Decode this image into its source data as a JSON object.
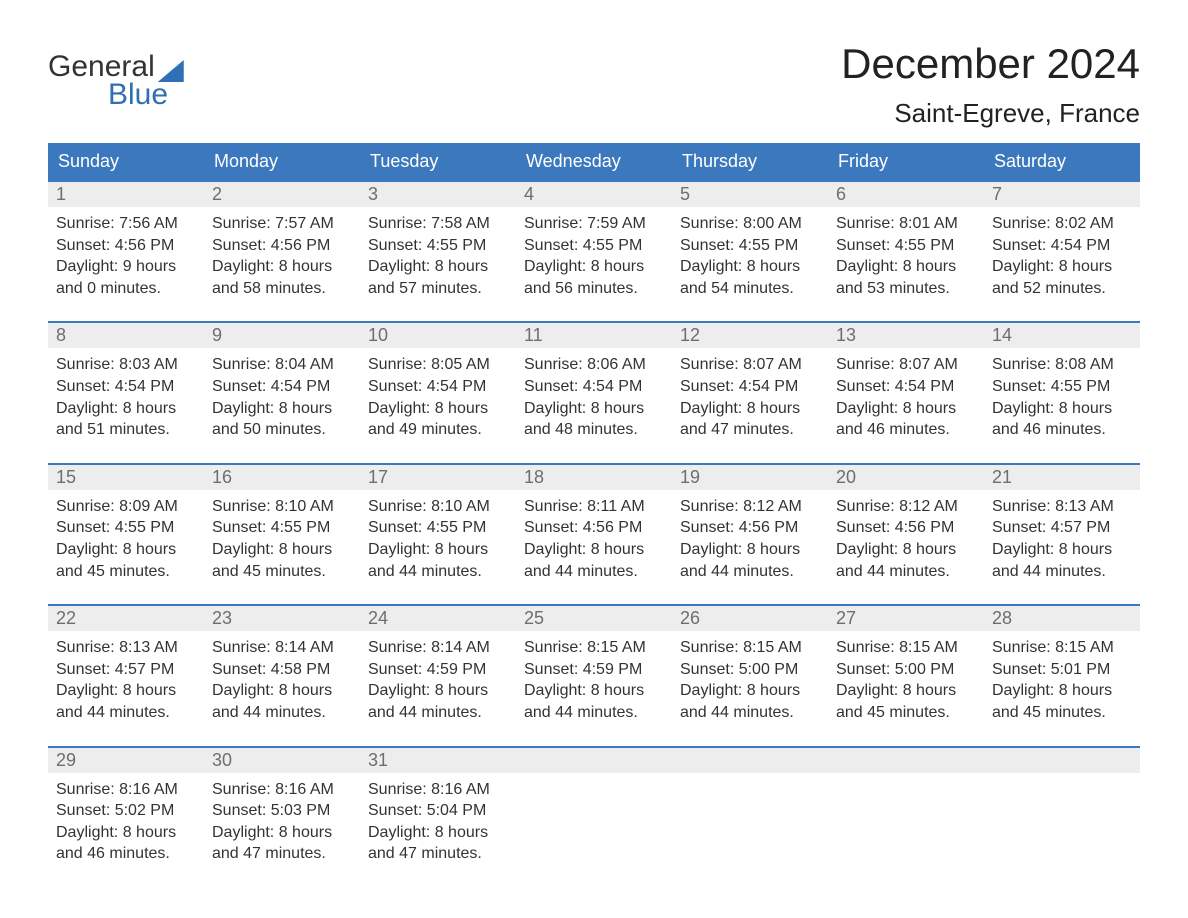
{
  "brand": {
    "line1": "General",
    "line2": "Blue"
  },
  "title": "December 2024",
  "location": "Saint-Egreve, France",
  "colors": {
    "header_bg": "#3b78be",
    "header_text": "#ffffff",
    "week_border": "#3b78be",
    "daynum_bg": "#ededed",
    "daynum_text": "#6e6e6e",
    "body_text": "#333333",
    "brand_blue": "#2f6fb3",
    "page_bg": "#ffffff"
  },
  "calendar": {
    "day_headers": [
      "Sunday",
      "Monday",
      "Tuesday",
      "Wednesday",
      "Thursday",
      "Friday",
      "Saturday"
    ],
    "weeks": [
      [
        {
          "n": "1",
          "sunrise": "Sunrise: 7:56 AM",
          "sunset": "Sunset: 4:56 PM",
          "dl1": "Daylight: 9 hours",
          "dl2": "and 0 minutes."
        },
        {
          "n": "2",
          "sunrise": "Sunrise: 7:57 AM",
          "sunset": "Sunset: 4:56 PM",
          "dl1": "Daylight: 8 hours",
          "dl2": "and 58 minutes."
        },
        {
          "n": "3",
          "sunrise": "Sunrise: 7:58 AM",
          "sunset": "Sunset: 4:55 PM",
          "dl1": "Daylight: 8 hours",
          "dl2": "and 57 minutes."
        },
        {
          "n": "4",
          "sunrise": "Sunrise: 7:59 AM",
          "sunset": "Sunset: 4:55 PM",
          "dl1": "Daylight: 8 hours",
          "dl2": "and 56 minutes."
        },
        {
          "n": "5",
          "sunrise": "Sunrise: 8:00 AM",
          "sunset": "Sunset: 4:55 PM",
          "dl1": "Daylight: 8 hours",
          "dl2": "and 54 minutes."
        },
        {
          "n": "6",
          "sunrise": "Sunrise: 8:01 AM",
          "sunset": "Sunset: 4:55 PM",
          "dl1": "Daylight: 8 hours",
          "dl2": "and 53 minutes."
        },
        {
          "n": "7",
          "sunrise": "Sunrise: 8:02 AM",
          "sunset": "Sunset: 4:54 PM",
          "dl1": "Daylight: 8 hours",
          "dl2": "and 52 minutes."
        }
      ],
      [
        {
          "n": "8",
          "sunrise": "Sunrise: 8:03 AM",
          "sunset": "Sunset: 4:54 PM",
          "dl1": "Daylight: 8 hours",
          "dl2": "and 51 minutes."
        },
        {
          "n": "9",
          "sunrise": "Sunrise: 8:04 AM",
          "sunset": "Sunset: 4:54 PM",
          "dl1": "Daylight: 8 hours",
          "dl2": "and 50 minutes."
        },
        {
          "n": "10",
          "sunrise": "Sunrise: 8:05 AM",
          "sunset": "Sunset: 4:54 PM",
          "dl1": "Daylight: 8 hours",
          "dl2": "and 49 minutes."
        },
        {
          "n": "11",
          "sunrise": "Sunrise: 8:06 AM",
          "sunset": "Sunset: 4:54 PM",
          "dl1": "Daylight: 8 hours",
          "dl2": "and 48 minutes."
        },
        {
          "n": "12",
          "sunrise": "Sunrise: 8:07 AM",
          "sunset": "Sunset: 4:54 PM",
          "dl1": "Daylight: 8 hours",
          "dl2": "and 47 minutes."
        },
        {
          "n": "13",
          "sunrise": "Sunrise: 8:07 AM",
          "sunset": "Sunset: 4:54 PM",
          "dl1": "Daylight: 8 hours",
          "dl2": "and 46 minutes."
        },
        {
          "n": "14",
          "sunrise": "Sunrise: 8:08 AM",
          "sunset": "Sunset: 4:55 PM",
          "dl1": "Daylight: 8 hours",
          "dl2": "and 46 minutes."
        }
      ],
      [
        {
          "n": "15",
          "sunrise": "Sunrise: 8:09 AM",
          "sunset": "Sunset: 4:55 PM",
          "dl1": "Daylight: 8 hours",
          "dl2": "and 45 minutes."
        },
        {
          "n": "16",
          "sunrise": "Sunrise: 8:10 AM",
          "sunset": "Sunset: 4:55 PM",
          "dl1": "Daylight: 8 hours",
          "dl2": "and 45 minutes."
        },
        {
          "n": "17",
          "sunrise": "Sunrise: 8:10 AM",
          "sunset": "Sunset: 4:55 PM",
          "dl1": "Daylight: 8 hours",
          "dl2": "and 44 minutes."
        },
        {
          "n": "18",
          "sunrise": "Sunrise: 8:11 AM",
          "sunset": "Sunset: 4:56 PM",
          "dl1": "Daylight: 8 hours",
          "dl2": "and 44 minutes."
        },
        {
          "n": "19",
          "sunrise": "Sunrise: 8:12 AM",
          "sunset": "Sunset: 4:56 PM",
          "dl1": "Daylight: 8 hours",
          "dl2": "and 44 minutes."
        },
        {
          "n": "20",
          "sunrise": "Sunrise: 8:12 AM",
          "sunset": "Sunset: 4:56 PM",
          "dl1": "Daylight: 8 hours",
          "dl2": "and 44 minutes."
        },
        {
          "n": "21",
          "sunrise": "Sunrise: 8:13 AM",
          "sunset": "Sunset: 4:57 PM",
          "dl1": "Daylight: 8 hours",
          "dl2": "and 44 minutes."
        }
      ],
      [
        {
          "n": "22",
          "sunrise": "Sunrise: 8:13 AM",
          "sunset": "Sunset: 4:57 PM",
          "dl1": "Daylight: 8 hours",
          "dl2": "and 44 minutes."
        },
        {
          "n": "23",
          "sunrise": "Sunrise: 8:14 AM",
          "sunset": "Sunset: 4:58 PM",
          "dl1": "Daylight: 8 hours",
          "dl2": "and 44 minutes."
        },
        {
          "n": "24",
          "sunrise": "Sunrise: 8:14 AM",
          "sunset": "Sunset: 4:59 PM",
          "dl1": "Daylight: 8 hours",
          "dl2": "and 44 minutes."
        },
        {
          "n": "25",
          "sunrise": "Sunrise: 8:15 AM",
          "sunset": "Sunset: 4:59 PM",
          "dl1": "Daylight: 8 hours",
          "dl2": "and 44 minutes."
        },
        {
          "n": "26",
          "sunrise": "Sunrise: 8:15 AM",
          "sunset": "Sunset: 5:00 PM",
          "dl1": "Daylight: 8 hours",
          "dl2": "and 44 minutes."
        },
        {
          "n": "27",
          "sunrise": "Sunrise: 8:15 AM",
          "sunset": "Sunset: 5:00 PM",
          "dl1": "Daylight: 8 hours",
          "dl2": "and 45 minutes."
        },
        {
          "n": "28",
          "sunrise": "Sunrise: 8:15 AM",
          "sunset": "Sunset: 5:01 PM",
          "dl1": "Daylight: 8 hours",
          "dl2": "and 45 minutes."
        }
      ],
      [
        {
          "n": "29",
          "sunrise": "Sunrise: 8:16 AM",
          "sunset": "Sunset: 5:02 PM",
          "dl1": "Daylight: 8 hours",
          "dl2": "and 46 minutes."
        },
        {
          "n": "30",
          "sunrise": "Sunrise: 8:16 AM",
          "sunset": "Sunset: 5:03 PM",
          "dl1": "Daylight: 8 hours",
          "dl2": "and 47 minutes."
        },
        {
          "n": "31",
          "sunrise": "Sunrise: 8:16 AM",
          "sunset": "Sunset: 5:04 PM",
          "dl1": "Daylight: 8 hours",
          "dl2": "and 47 minutes."
        },
        null,
        null,
        null,
        null
      ]
    ]
  }
}
